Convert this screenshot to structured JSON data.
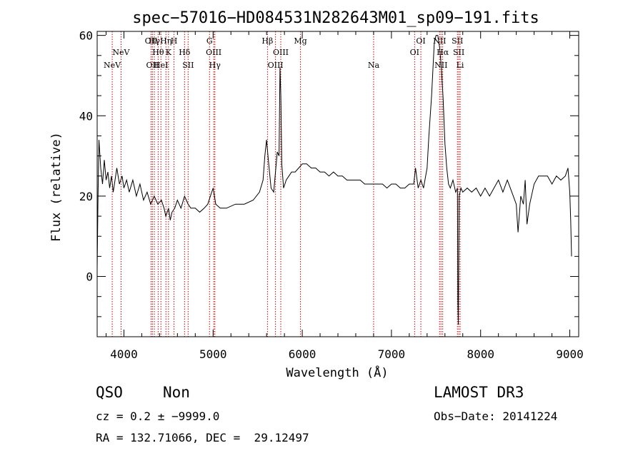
{
  "chart_data": {
    "type": "line",
    "title": "spec−57016−HD084531N282643M01_sp09−191.fits",
    "xlabel": "Wavelength (Å)",
    "ylabel": "Flux (relative)",
    "xlim": [
      3700,
      9100
    ],
    "ylim": [
      -15,
      61
    ],
    "x_ticks": [
      4000,
      5000,
      6000,
      7000,
      8000,
      9000
    ],
    "y_ticks": [
      0,
      20,
      40,
      60
    ],
    "grid": false,
    "series_color": "#000000",
    "line_marker_color": "#cc0000",
    "spectral_lines": [
      {
        "wavelength": 3869,
        "label": "NeV",
        "row": 2
      },
      {
        "wavelength": 3968,
        "label": "NeV",
        "row": 1
      },
      {
        "wavelength": 4305,
        "label": "OII",
        "row": 0
      },
      {
        "wavelength": 4320,
        "label": "OII",
        "row": 2
      },
      {
        "wavelength": 4341,
        "label": "Hγ",
        "row": 0
      },
      {
        "wavelength": 4384,
        "label": "Hθ",
        "row": 1
      },
      {
        "wavelength": 4415,
        "label": "HeI",
        "row": 2
      },
      {
        "wavelength": 4471,
        "label": "Hη",
        "row": 0
      },
      {
        "wavelength": 4500,
        "label": "K",
        "row": 1
      },
      {
        "wavelength": 4562,
        "label": "H",
        "row": 0
      },
      {
        "wavelength": 4680,
        "label": "Hδ",
        "row": 1
      },
      {
        "wavelength": 4720,
        "label": "SII",
        "row": 2
      },
      {
        "wavelength": 4960,
        "label": "G",
        "row": 0
      },
      {
        "wavelength": 5007,
        "label": "OIII",
        "row": 1
      },
      {
        "wavelength": 5020,
        "label": "Hγ",
        "row": 2
      },
      {
        "wavelength": 5610,
        "label": "Hβ",
        "row": 0
      },
      {
        "wavelength": 5700,
        "label": "OIII",
        "row": 2
      },
      {
        "wavelength": 5759,
        "label": "OIII",
        "row": 1
      },
      {
        "wavelength": 5980,
        "label": "Mg",
        "row": 0
      },
      {
        "wavelength": 6800,
        "label": "Na",
        "row": 2
      },
      {
        "wavelength": 7260,
        "label": "OI",
        "row": 1
      },
      {
        "wavelength": 7330,
        "label": "OI",
        "row": 0
      },
      {
        "wavelength": 7540,
        "label": "NII",
        "row": 0
      },
      {
        "wavelength": 7556,
        "label": "NII",
        "row": 2
      },
      {
        "wavelength": 7575,
        "label": "Hα",
        "row": 1
      },
      {
        "wavelength": 7740,
        "label": "SII",
        "row": 0
      },
      {
        "wavelength": 7755,
        "label": "SII",
        "row": 1
      },
      {
        "wavelength": 7770,
        "label": "Li",
        "row": 2
      }
    ],
    "series": [
      {
        "x": [
          3700,
          3710,
          3720,
          3740,
          3760,
          3780,
          3800,
          3820,
          3840,
          3860,
          3880,
          3900,
          3920,
          3950,
          3980,
          4000,
          4030,
          4060,
          4100,
          4140,
          4180,
          4220,
          4260,
          4300,
          4340,
          4380,
          4420,
          4450,
          4470,
          4500,
          4520,
          4540,
          4570,
          4600,
          4640,
          4680,
          4700,
          4720,
          4750,
          4800,
          4850,
          4900,
          4940,
          4970,
          5000,
          5030,
          5080,
          5150,
          5250,
          5350,
          5450,
          5520,
          5560,
          5580,
          5600,
          5620,
          5650,
          5680,
          5700,
          5720,
          5740,
          5750,
          5760,
          5770,
          5790,
          5820,
          5850,
          5880,
          5920,
          5960,
          6000,
          6050,
          6100,
          6150,
          6200,
          6250,
          6300,
          6350,
          6400,
          6450,
          6500,
          6550,
          6600,
          6650,
          6700,
          6750,
          6800,
          6850,
          6900,
          6950,
          7000,
          7050,
          7100,
          7150,
          7200,
          7250,
          7270,
          7300,
          7330,
          7360,
          7400,
          7420,
          7450,
          7480,
          7500,
          7520,
          7540,
          7560,
          7580,
          7600,
          7620,
          7640,
          7660,
          7690,
          7720,
          7740,
          7745,
          7750,
          7760,
          7780,
          7800,
          7850,
          7900,
          7950,
          8000,
          8050,
          8100,
          8150,
          8200,
          8250,
          8300,
          8350,
          8400,
          8420,
          8450,
          8480,
          8500,
          8520,
          8550,
          8600,
          8650,
          8700,
          8750,
          8800,
          8850,
          8900,
          8950,
          8980,
          9000,
          9010,
          9020
        ],
        "y": [
          2,
          20,
          34,
          27,
          23,
          29,
          24,
          26,
          22,
          25,
          21,
          24,
          27,
          23,
          25,
          22,
          24,
          21,
          24,
          20,
          23,
          19,
          21,
          18,
          20,
          18,
          19,
          17,
          15,
          17,
          14,
          16,
          17,
          19,
          17,
          20,
          19,
          18,
          17,
          17,
          16,
          17,
          18,
          20,
          22,
          18,
          17,
          17,
          18,
          18,
          19,
          21,
          24,
          30,
          34,
          29,
          22,
          21,
          26,
          31,
          30,
          52,
          45,
          28,
          22,
          24,
          25,
          26,
          26,
          27,
          28,
          28,
          27,
          27,
          26,
          26,
          25,
          26,
          25,
          25,
          24,
          24,
          24,
          24,
          23,
          23,
          23,
          23,
          23,
          22,
          23,
          23,
          22,
          22,
          23,
          23,
          27,
          22,
          24,
          22,
          27,
          35,
          45,
          58,
          60,
          60,
          57,
          52,
          44,
          33,
          27,
          23,
          22,
          24,
          21,
          22,
          -6,
          -12,
          20,
          22,
          21,
          22,
          21,
          22,
          20,
          22,
          20,
          22,
          24,
          21,
          24,
          21,
          18,
          11,
          20,
          18,
          24,
          13,
          18,
          23,
          25,
          25,
          25,
          23,
          25,
          24,
          25,
          27,
          21,
          14,
          5
        ]
      }
    ]
  },
  "info": {
    "class": "QSO",
    "subclass": "Non",
    "survey": "LAMOST DR3",
    "cz_line": "cz = 0.2 ± −9999.0",
    "obs_date_line": "Obs−Date: 20141224",
    "coords_line": "RA = 132.71066, DEC =  29.12497"
  }
}
